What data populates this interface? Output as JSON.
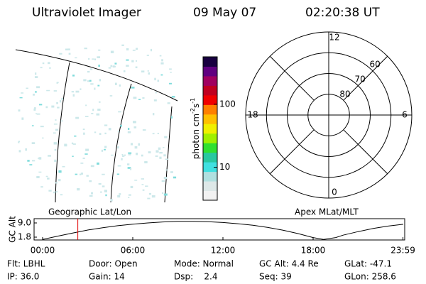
{
  "header": {
    "instrument": "Ultraviolet Imager",
    "date": "09 May 07",
    "time": "02:20:38 UT"
  },
  "colorbar": {
    "label": {
      "text": "photon cm",
      "exp1": "-2",
      "unit2": "s",
      "exp2": "-1"
    },
    "scale": "log",
    "lim": [
      3,
      566
    ],
    "ticks": [
      10,
      100
    ],
    "colors": [
      "#f2f2f2",
      "#dde8e8",
      "#b0e0e0",
      "#40e0e0",
      "#28c8a0",
      "#30e030",
      "#a0f000",
      "#f0f000",
      "#ffc000",
      "#ff8000",
      "#f00000",
      "#c00020",
      "#a00060",
      "#600080",
      "#180040"
    ]
  },
  "polar": {
    "lat_lim": [
      90,
      50
    ],
    "lat_ticks": [
      80,
      70,
      60
    ],
    "mlt_ticks": [
      12,
      6,
      0,
      18
    ]
  },
  "altitude": {
    "type": "line",
    "title_left": "Geographic Lat/Lon",
    "title_right": "Apex MLat/MLT",
    "ylabel": "GC Alt",
    "xlim": [
      0,
      24
    ],
    "xticks": [
      {
        "value": 0,
        "label": "00:00"
      },
      {
        "value": 6,
        "label": "06:00"
      },
      {
        "value": 12,
        "label": "12:00"
      },
      {
        "value": 18,
        "label": "18:00"
      },
      {
        "value": 23.98,
        "label": "23:59"
      }
    ],
    "ylim": [
      0.36,
      11.16
    ],
    "yticks": [
      {
        "value": 9,
        "label": "9.0"
      },
      {
        "value": 1.8,
        "label": "1.8"
      }
    ],
    "x": [
      0,
      1,
      2,
      3,
      4,
      5,
      6,
      7,
      8,
      9,
      10,
      11,
      12,
      13,
      14,
      15,
      16,
      17,
      18,
      18.7,
      19.5,
      20,
      21,
      22,
      23,
      24
    ],
    "values": [
      0.6,
      2.3,
      3.9,
      5.4,
      6.6,
      7.6,
      8.4,
      9.0,
      9.5,
      9.8,
      9.8,
      9.6,
      9.2,
      8.6,
      7.8,
      6.7,
      5.3,
      3.6,
      1.6,
      0.6,
      1.6,
      2.8,
      4.6,
      6.2,
      7.4,
      8.3
    ],
    "color": "#000000",
    "marker_color": "#e00000"
  },
  "footer": {
    "rows": [
      [
        "Flt: LBHL",
        "Door: Open",
        "Mode: Normal",
        "GC Alt: 4.4 Re",
        "GLat: -47.1"
      ],
      [
        "IP: 36.0",
        "Gain: 14",
        "Dsp:    2.4",
        "Seq: 39",
        "GLon: 258.6"
      ]
    ]
  }
}
